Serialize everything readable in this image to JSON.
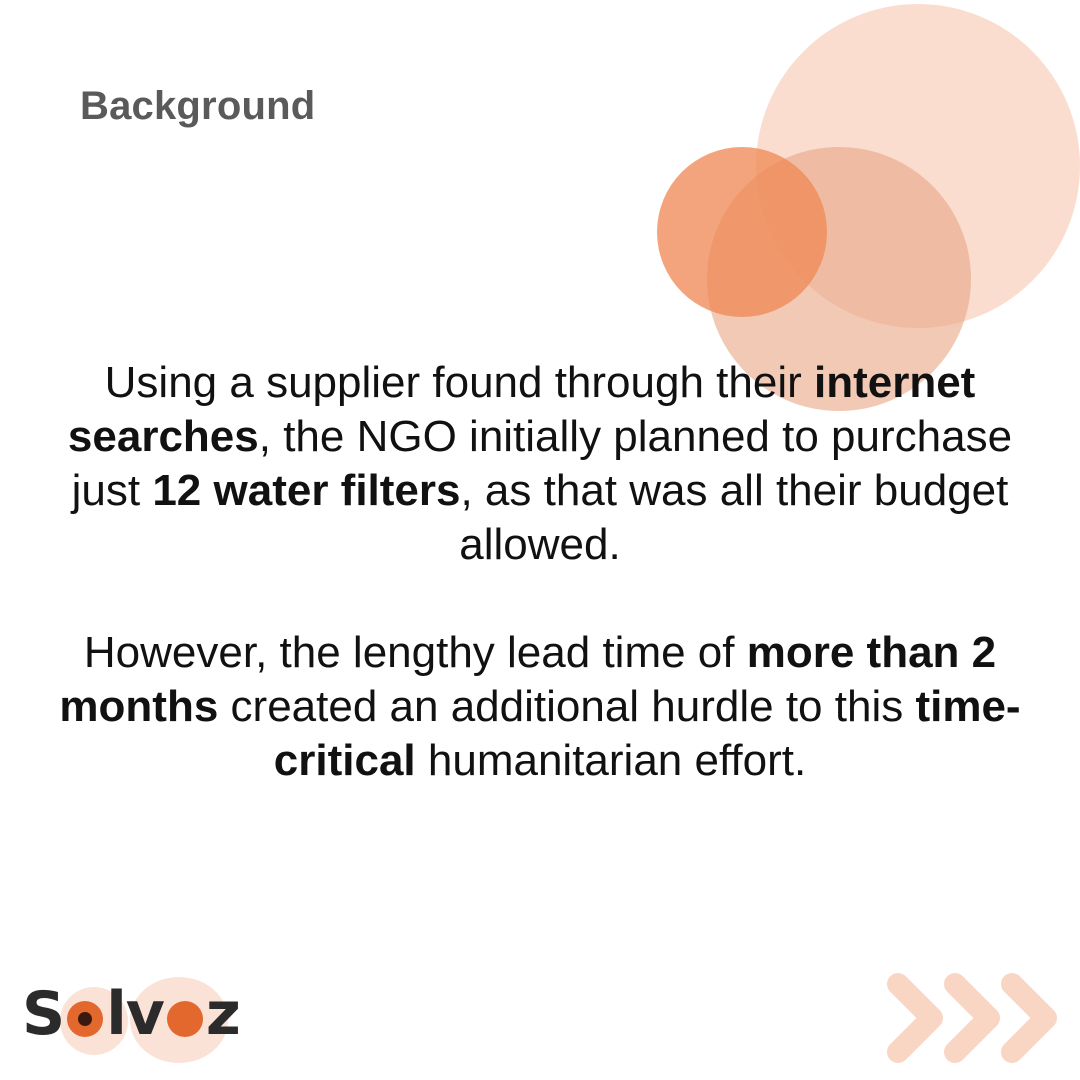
{
  "heading": "Background",
  "paragraph1": {
    "t1": "Using a supplier found through their ",
    "b1": "internet searches",
    "t2": ", the NGO initially planned to purchase just ",
    "b2": "12 water filters",
    "t3": ", as that was all their budget allowed."
  },
  "paragraph2": {
    "t1": "However, the lengthy lead time of ",
    "b1": "more than 2 months",
    "t2": " created an additional hurdle to this ",
    "b2": "time-critical",
    "t3": " humanitarian effort."
  },
  "logo": {
    "part1": "S",
    "part2": "lv",
    "part3": "z"
  },
  "icons": {
    "decor": "decorative-circles",
    "arrows": "chevron-right-triple-icon"
  },
  "colors": {
    "accent": "#e3682e",
    "light_peach": "#f8cbb6",
    "medium_peach": "#e9a888",
    "orange": "#f08a57"
  }
}
